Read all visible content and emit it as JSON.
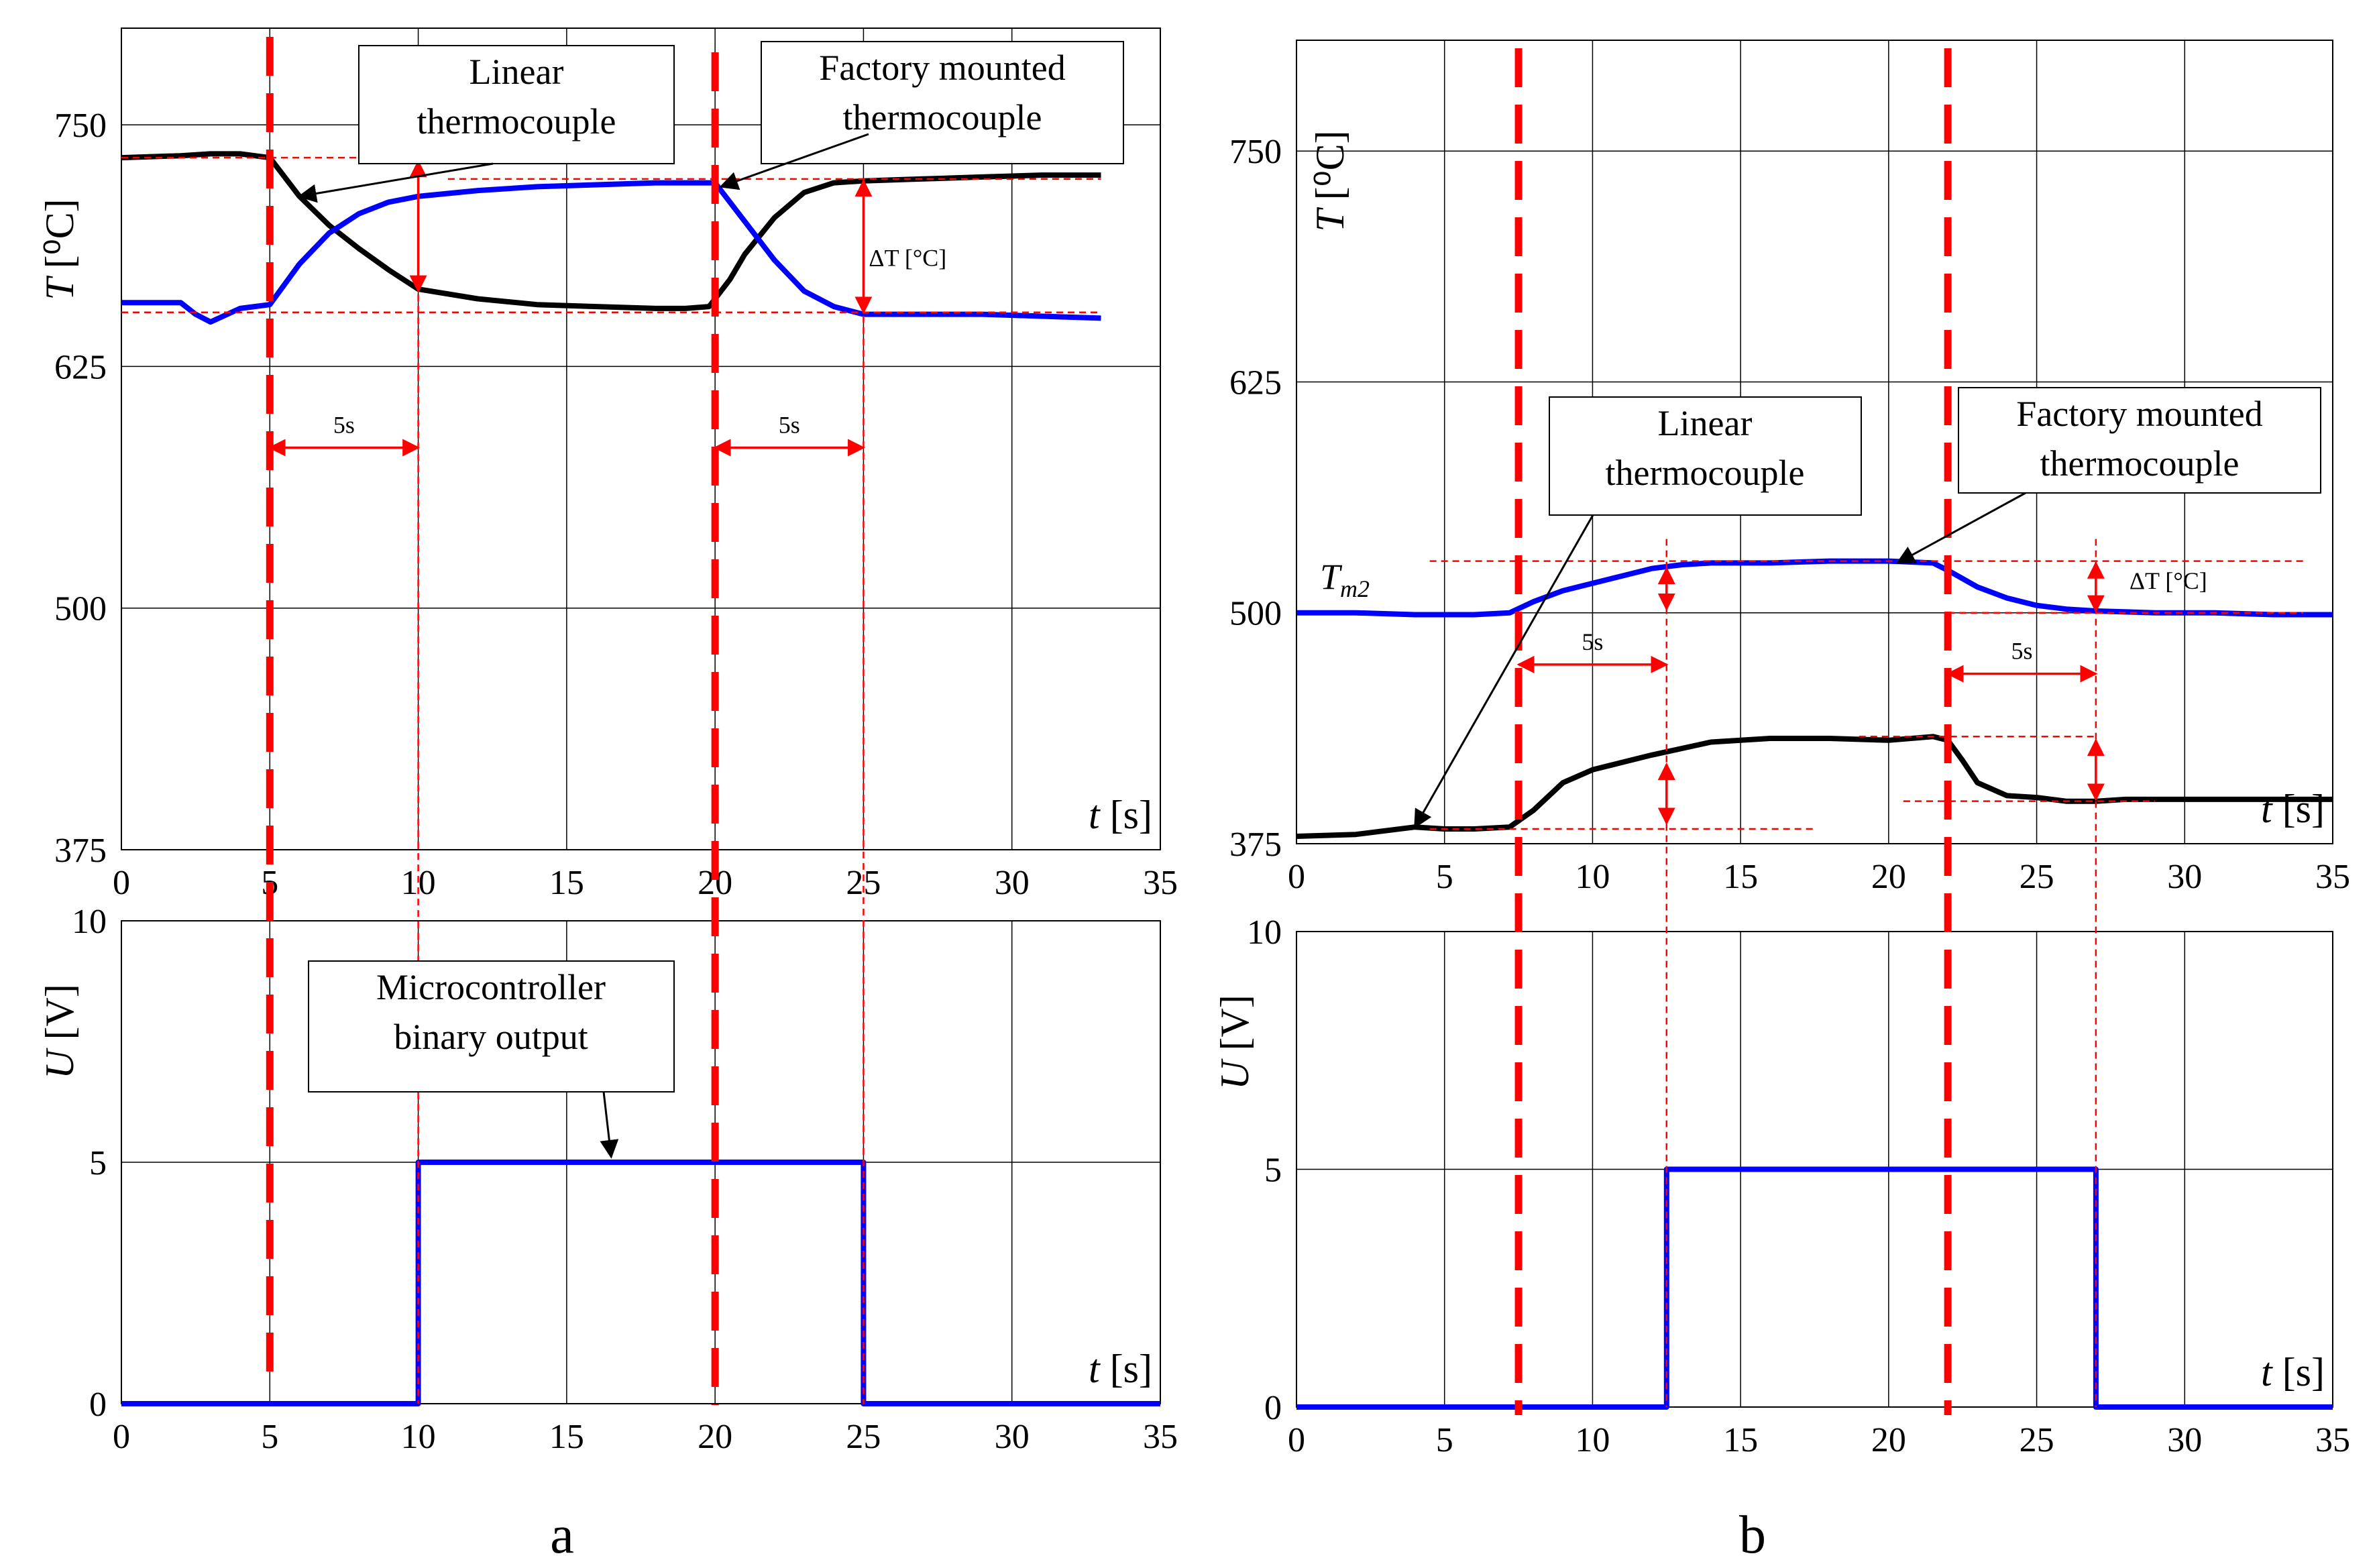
{
  "chart_data": [
    {
      "id": "a_temp",
      "type": "line",
      "xlim": [
        0,
        35
      ],
      "ylim": [
        375,
        800
      ],
      "xticks": [
        0,
        5,
        10,
        15,
        20,
        25,
        30,
        35
      ],
      "yticks": [
        375,
        500,
        625,
        750
      ],
      "ylabel_main": "T",
      "ylabel_unit": "[⁰C]",
      "xlabel_main": "t",
      "xlabel_unit": "[s]",
      "series": [
        {
          "name": "Linear thermocouple",
          "color": "#000000",
          "x": [
            0,
            2,
            3,
            4,
            5,
            6,
            7,
            8,
            9,
            10,
            12,
            14,
            16,
            18,
            19,
            19.8,
            20.5,
            21,
            22,
            23,
            24,
            25,
            27,
            29,
            31,
            33
          ],
          "y": [
            733,
            734,
            735,
            735,
            733,
            713,
            698,
            686,
            675,
            665,
            660,
            657,
            656,
            655,
            655,
            656,
            670,
            683,
            702,
            715,
            720,
            721,
            722,
            723,
            724,
            724
          ]
        },
        {
          "name": "Factory mounted thermocouple",
          "color": "#0000ff",
          "x": [
            0,
            2,
            2.5,
            3,
            4,
            5,
            6,
            7,
            8,
            9,
            10,
            12,
            14,
            16,
            18,
            19,
            20,
            21,
            22,
            23,
            24,
            25,
            27,
            29,
            31,
            33
          ],
          "y": [
            658,
            658,
            652,
            648,
            655,
            657,
            678,
            694,
            704,
            710,
            713,
            716,
            718,
            719,
            720,
            720,
            720,
            700,
            680,
            664,
            656,
            652,
            652,
            652,
            651,
            650
          ]
        }
      ],
      "vlines_dashed": [
        5,
        20
      ],
      "annotations": [
        {
          "text": [
            "Linear",
            "thermocouple"
          ],
          "arrow_to": [
            6,
            713
          ]
        },
        {
          "text": [
            "Factory mounted",
            "thermocouple"
          ],
          "arrow_to": [
            20.2,
            718
          ]
        },
        {
          "text": "5s",
          "interval": [
            5,
            10
          ]
        },
        {
          "text": "5s",
          "interval": [
            20,
            25
          ]
        },
        {
          "text": "ΔT [°C]"
        }
      ]
    },
    {
      "id": "a_volt",
      "type": "line",
      "xlim": [
        0,
        35
      ],
      "ylim": [
        0,
        10
      ],
      "xticks": [
        0,
        5,
        10,
        15,
        20,
        25,
        30,
        35
      ],
      "yticks": [
        0,
        5,
        10
      ],
      "ylabel_main": "U",
      "ylabel_unit": "[V]",
      "xlabel_main": "t",
      "xlabel_unit": "[s]",
      "series": [
        {
          "name": "Microcontroller binary output",
          "color": "#0000ff",
          "x": [
            0,
            10,
            10,
            25,
            25,
            35
          ],
          "y": [
            0,
            0,
            5,
            5,
            0,
            0
          ]
        }
      ],
      "vlines_dashed": [
        5,
        20
      ],
      "annotations": [
        {
          "text": [
            "Microcontroller",
            "binary output"
          ],
          "arrow_to": [
            16.5,
            5
          ]
        }
      ]
    },
    {
      "id": "b_temp",
      "type": "line",
      "xlim": [
        0,
        35
      ],
      "ylim": [
        375,
        810
      ],
      "xticks": [
        0,
        5,
        10,
        15,
        20,
        25,
        30,
        35
      ],
      "yticks": [
        375,
        500,
        625,
        750
      ],
      "ylabel_main": "T",
      "ylabel_unit": "[⁰C]",
      "xlabel_main": "t",
      "xlabel_unit": "[s]",
      "series": [
        {
          "name": "Linear thermocouple",
          "color": "#000000",
          "x": [
            0,
            2,
            3,
            4,
            5,
            6,
            7.2,
            8,
            9,
            10,
            12,
            14,
            16,
            18,
            20,
            21.5,
            22,
            22.5,
            23,
            24,
            25,
            26,
            27,
            28,
            30,
            32,
            35
          ],
          "y": [
            379,
            380,
            382,
            384,
            383,
            383,
            384,
            393,
            408,
            415,
            423,
            430,
            432,
            432,
            431,
            433,
            431,
            420,
            408,
            401,
            400,
            398,
            398,
            399,
            399,
            399,
            399
          ]
        },
        {
          "name": "Factory mounted thermocouple",
          "color": "#0000ff",
          "x": [
            0,
            2,
            4,
            6,
            7.2,
            8,
            9,
            10,
            11,
            12,
            13,
            14,
            16,
            18,
            20,
            21.5,
            22,
            23,
            24,
            25,
            26,
            27,
            29,
            31,
            33,
            35
          ],
          "y": [
            500,
            500,
            499,
            499,
            500,
            506,
            512,
            516,
            520,
            524,
            526,
            527,
            527,
            528,
            528,
            527,
            523,
            514,
            508,
            504,
            502,
            501,
            500,
            500,
            499,
            499
          ]
        }
      ],
      "vlines_dashed": [
        7.5,
        22
      ],
      "annotations": [
        {
          "text": [
            "Linear",
            "thermocouple"
          ],
          "arrow_to": [
            4,
            384
          ]
        },
        {
          "text": [
            "Factory mounted",
            "thermocouple"
          ],
          "arrow_to": [
            20.3,
            527
          ]
        },
        {
          "text": "5s",
          "interval": [
            7.5,
            12.5
          ]
        },
        {
          "text": "5s",
          "interval": [
            22,
            27
          ]
        },
        {
          "text": "ΔT [°C]"
        },
        {
          "text": "Tm2",
          "main": "T",
          "sub": "m2"
        }
      ]
    },
    {
      "id": "b_volt",
      "type": "line",
      "xlim": [
        0,
        35
      ],
      "ylim": [
        0,
        10
      ],
      "xticks": [
        0,
        5,
        10,
        15,
        20,
        25,
        30,
        35
      ],
      "yticks": [
        0,
        5,
        10
      ],
      "ylabel_main": "U",
      "ylabel_unit": "[V]",
      "xlabel_main": "t",
      "xlabel_unit": "[s]",
      "series": [
        {
          "name": "Microcontroller binary output",
          "color": "#0000ff",
          "x": [
            0,
            12.5,
            12.5,
            27,
            27,
            35
          ],
          "y": [
            0,
            0,
            5,
            5,
            0,
            0
          ]
        }
      ],
      "vlines_dashed": [
        7.5,
        22
      ],
      "annotations": []
    }
  ],
  "panel_labels": {
    "a": "a",
    "b": "b"
  },
  "colors": {
    "dashed_marker": "#ff0000",
    "guide": "#ff0000",
    "grid": "#000000"
  }
}
